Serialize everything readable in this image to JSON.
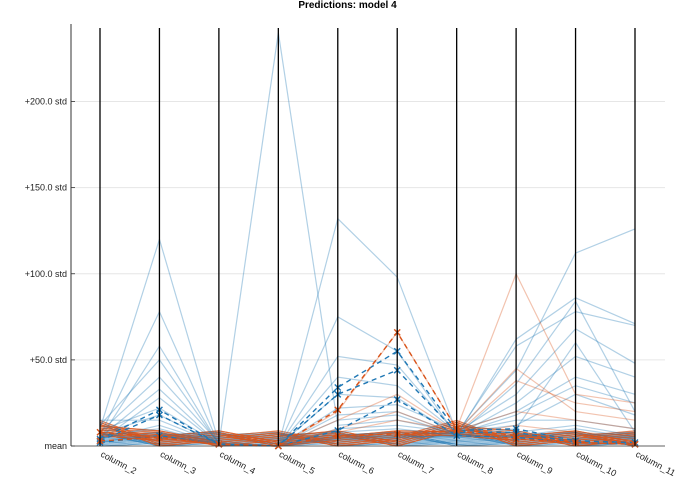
{
  "chart_data": {
    "type": "parallel-coordinates",
    "title": "Predictions: model 4",
    "categories": [
      "column_2",
      "column_3",
      "column_4",
      "column_5",
      "column_6",
      "column_7",
      "column_8",
      "column_9",
      "column_10",
      "column_11"
    ],
    "y_axis": {
      "unit": "std from mean",
      "ticks": [
        {
          "value": 0,
          "label": "mean"
        },
        {
          "value": 50,
          "label": "+50.0 std"
        },
        {
          "value": 100,
          "label": "+100.0 std"
        },
        {
          "value": 150,
          "label": "+150.0 std"
        },
        {
          "value": 200,
          "label": "+200.0 std"
        }
      ],
      "ylim": [
        0,
        245
      ]
    },
    "grid": true,
    "colors": {
      "class_a": "#1f77b4",
      "class_b": "#d95319",
      "axis_line": "#000000",
      "grid": "#e6e6e6"
    },
    "group_means": [
      {
        "color": "class_a",
        "values": [
          4,
          21,
          1,
          0,
          34,
          55,
          9,
          10,
          3,
          2
        ]
      },
      {
        "color": "class_a",
        "values": [
          3,
          18,
          1,
          0,
          30,
          44,
          8,
          8,
          2,
          1
        ]
      },
      {
        "color": "class_a",
        "values": [
          2,
          6,
          1,
          0,
          9,
          27,
          6,
          5,
          2,
          1
        ]
      },
      {
        "color": "class_b",
        "values": [
          3,
          5,
          1,
          0,
          21,
          66,
          10,
          6,
          2,
          1
        ]
      },
      {
        "color": "class_b",
        "values": [
          8,
          5,
          1,
          0,
          6,
          7,
          9,
          4,
          2,
          1
        ]
      }
    ],
    "series": [
      {
        "color": "class_a",
        "values": [
          10,
          120,
          2,
          0,
          132,
          98,
          8,
          44,
          112,
          126
        ]
      },
      {
        "color": "class_a",
        "values": [
          6,
          78,
          1,
          0,
          75,
          55,
          6,
          62,
          86,
          71
        ]
      },
      {
        "color": "class_a",
        "values": [
          4,
          58,
          1,
          0,
          52,
          47,
          7,
          58,
          78,
          70
        ]
      },
      {
        "color": "class_a",
        "values": [
          12,
          50,
          1,
          0,
          40,
          35,
          8,
          30,
          68,
          48
        ]
      },
      {
        "color": "class_a",
        "values": [
          8,
          40,
          2,
          0,
          30,
          28,
          6,
          25,
          52,
          40
        ]
      },
      {
        "color": "class_a",
        "values": [
          5,
          33,
          1,
          0,
          22,
          24,
          9,
          20,
          40,
          30
        ]
      },
      {
        "color": "class_a",
        "values": [
          3,
          28,
          1,
          0,
          18,
          20,
          7,
          18,
          35,
          25
        ]
      },
      {
        "color": "class_a",
        "values": [
          9,
          22,
          1,
          240,
          12,
          15,
          8,
          12,
          30,
          18
        ]
      },
      {
        "color": "class_a",
        "values": [
          7,
          18,
          1,
          0,
          15,
          18,
          6,
          36,
          84,
          20
        ]
      },
      {
        "color": "class_a",
        "values": [
          15,
          15,
          1,
          0,
          10,
          12,
          8,
          15,
          15,
          10
        ]
      },
      {
        "color": "class_a",
        "values": [
          4,
          12,
          1,
          0,
          8,
          10,
          6,
          10,
          60,
          8
        ]
      },
      {
        "color": "class_a",
        "values": [
          6,
          10,
          1,
          0,
          6,
          8,
          7,
          8,
          12,
          6
        ]
      },
      {
        "color": "class_a",
        "values": [
          2,
          8,
          1,
          0,
          5,
          6,
          5,
          6,
          10,
          5
        ]
      },
      {
        "color": "class_a",
        "values": [
          3,
          6,
          1,
          0,
          4,
          5,
          6,
          5,
          8,
          4
        ]
      },
      {
        "color": "class_b",
        "values": [
          12,
          8,
          2,
          0,
          20,
          66,
          10,
          100,
          30,
          25
        ]
      },
      {
        "color": "class_b",
        "values": [
          10,
          6,
          1,
          0,
          15,
          30,
          8,
          45,
          20,
          15
        ]
      },
      {
        "color": "class_b",
        "values": [
          8,
          5,
          1,
          0,
          10,
          20,
          7,
          38,
          25,
          20
        ]
      },
      {
        "color": "class_b",
        "values": [
          11,
          4,
          1,
          0,
          8,
          15,
          9,
          20,
          15,
          10
        ]
      },
      {
        "color": "class_b",
        "values": [
          6,
          3,
          1,
          0,
          5,
          8,
          6,
          12,
          8,
          6
        ]
      }
    ]
  }
}
